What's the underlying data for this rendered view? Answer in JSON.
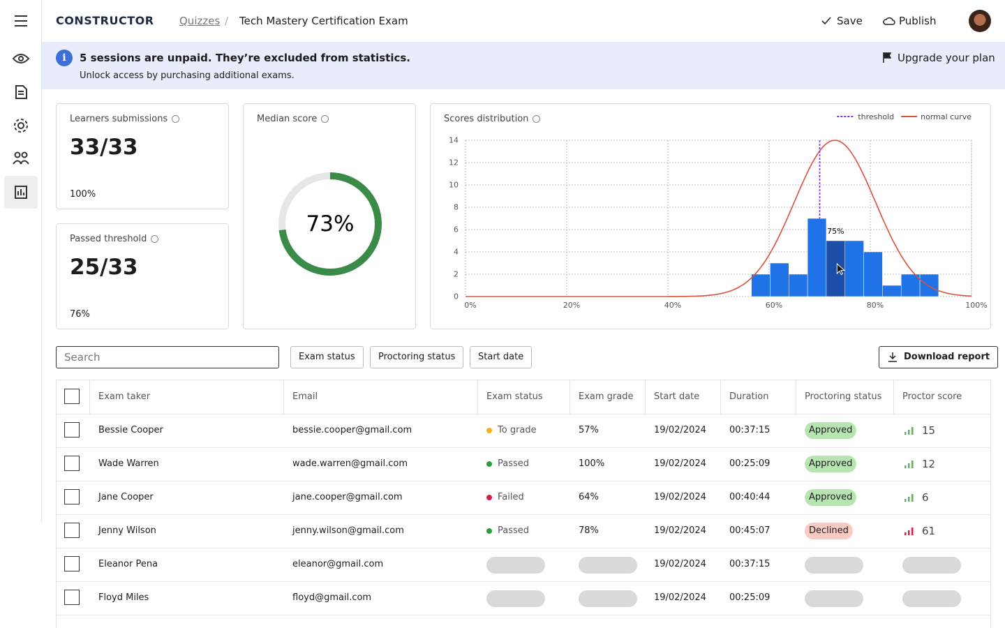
{
  "header": {
    "logo": "CONSTRUCTOR",
    "breadcrumb": [
      "Quizzes",
      "Tech Mastery Certification Exam"
    ],
    "actions": [
      "Save",
      "Publish"
    ]
  },
  "banner": {
    "title": "5 sessions are unpaid. They’re excluded from statistics.",
    "text": "Unlock access by purchasing additional exams.",
    "action": "Upgrade your plan"
  },
  "stats": [
    {
      "title": "Learners submissions",
      "value": "33/33",
      "percent": "100%"
    },
    {
      "title": "Passed threshold",
      "value": "25/33",
      "percent": "76%"
    }
  ],
  "median": {
    "title": "Median score",
    "value": 73,
    "label": "73%",
    "color": "#3a8a48"
  },
  "chart_data": {
    "type": "histogram",
    "title": "Scores distribution",
    "bins": [
      56.5,
      60.2,
      63.9,
      67.6,
      71.3,
      75,
      78.7,
      82.4,
      86.1,
      89.8,
      93.5
    ],
    "counts": [
      2,
      3,
      2,
      7,
      5,
      5,
      4,
      1,
      2,
      2
    ],
    "colors": [
      "#1f73e6",
      "#1f73e6",
      "#1f73e6",
      "#1f73e6",
      "#1a4ea8",
      "#1f73e6",
      "#1f73e6",
      "#1f73e6",
      "#1f73e6",
      "#1f73e6"
    ],
    "hover": {
      "bin": 4,
      "label": "75%"
    },
    "threshold": {
      "name": "threshold",
      "value": 70,
      "color": "#7b2ff2"
    },
    "normal_curve": {
      "name": "normal curve",
      "mean": 73,
      "sd": 8,
      "peak": 14,
      "color": "#d9503f"
    },
    "xlim": [
      0,
      100
    ],
    "ylim": [
      0,
      14
    ],
    "xticks": [
      {
        "value": 0,
        "label": "0%"
      },
      {
        "value": 20,
        "label": "20%"
      },
      {
        "value": 40,
        "label": "40%"
      },
      {
        "value": 60,
        "label": "60%"
      },
      {
        "value": 80,
        "label": "80%"
      },
      {
        "value": 100,
        "label": "100%"
      }
    ],
    "yticks": [
      0,
      2,
      4,
      6,
      8,
      10,
      12,
      14
    ],
    "grid": true,
    "legend": "top-right"
  },
  "filters": {
    "search": "Search",
    "buttons": [
      "Exam status",
      "Proctoring status",
      "Start date"
    ],
    "download": "Download report"
  },
  "table": {
    "columns": [
      "Exam taker",
      "Email",
      "Exam status",
      "Exam grade",
      "Start date",
      "Duration",
      "Proctoring status",
      "Proctor score"
    ],
    "rows": [
      {
        "cells": [
          "Bessie Cooper",
          "bessie.cooper@gmail.com",
          "To grade",
          "57%",
          "19/02/2024",
          "00:37:15",
          "Approved",
          15
        ],
        "colors": {
          "status": "#f2b01e",
          "pill": "#b8e4b3",
          "icon": "#6aa86a"
        }
      },
      {
        "cells": [
          "Wade Warren",
          "wade.warren@gmail.com",
          "Passed",
          "100%",
          "19/02/2024",
          "00:25:09",
          "Approved",
          12
        ],
        "colors": {
          "status": "#2e9a3e",
          "pill": "#b8e4b3",
          "icon": "#6aa86a"
        }
      },
      {
        "cells": [
          "Jane Cooper",
          "jane.cooper@gmail.com",
          "Failed",
          "64%",
          "19/02/2024",
          "00:40:44",
          "Approved",
          6
        ],
        "colors": {
          "status": "#d61f4a",
          "pill": "#b8e4b3",
          "icon": "#6aa86a"
        }
      },
      {
        "cells": [
          "Jenny Wilson",
          "jenny.wilson@gmail.com",
          "Passed",
          "78%",
          "19/02/2024",
          "00:45:07",
          "Declined",
          61
        ],
        "colors": {
          "status": "#2e9a3e",
          "pill": "#f7cac4",
          "icon": "#d61f4a"
        }
      },
      {
        "cells": [
          "Eleanor Pena",
          "eleanor@gmail.com",
          null,
          null,
          "19/02/2024",
          "00:37:15",
          null,
          null
        ],
        "colors": {}
      },
      {
        "cells": [
          "Floyd Miles",
          "floyd@gmail.com",
          null,
          null,
          "19/02/2024",
          "00:25:09",
          null,
          null
        ],
        "colors": {}
      }
    ]
  }
}
